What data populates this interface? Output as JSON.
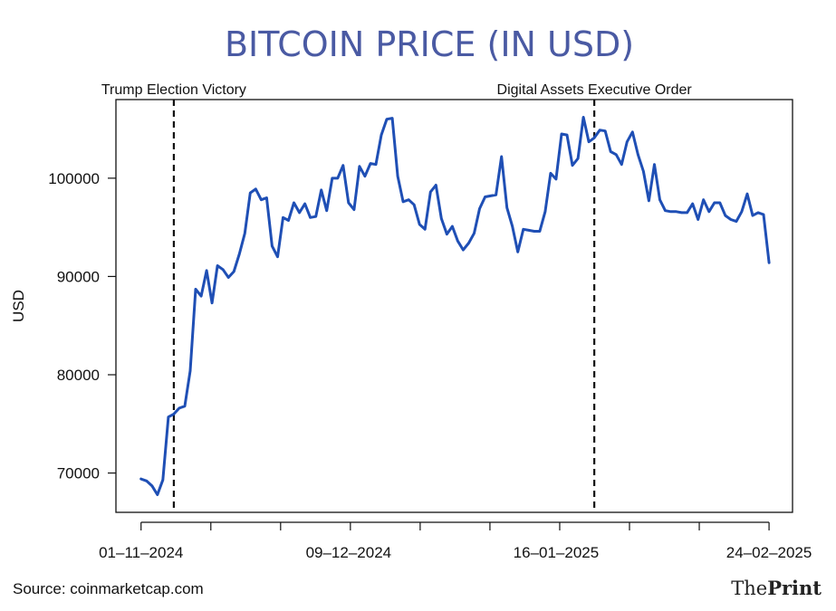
{
  "chart_data": {
    "type": "line",
    "title": "BITCOIN PRICE (IN USD)",
    "xlabel": "",
    "ylabel": "USD",
    "x_tick_labels": [
      "01–11–2024",
      "09–12–2024",
      "16–01–2025",
      "24–02–2025"
    ],
    "x_tick_index": [
      0,
      38,
      76,
      115
    ],
    "y_ticks": [
      70000,
      80000,
      90000,
      100000
    ],
    "y_tick_labels": [
      "70000",
      "80000",
      "90000",
      "100000"
    ],
    "ylim": [
      66000,
      108000
    ],
    "xlim_index": [
      -4.6,
      119.3
    ],
    "series": [
      {
        "name": "Bitcoin Price",
        "color": "#1f4fb5",
        "values": [
          69400,
          69200,
          68700,
          67800,
          69300,
          75700,
          76000,
          76600,
          76800,
          80400,
          88700,
          88000,
          90600,
          87300,
          91100,
          90700,
          89900,
          90500,
          92300,
          94400,
          98500,
          98900,
          97800,
          98000,
          93100,
          92000,
          96000,
          95700,
          97500,
          96500,
          97400,
          96000,
          96100,
          98800,
          96700,
          100000,
          100000,
          101300,
          97500,
          96800,
          101200,
          100200,
          101500,
          101400,
          104400,
          106000,
          106100,
          100200,
          97600,
          97800,
          97300,
          95300,
          94800,
          98600,
          99300,
          95900,
          94300,
          95100,
          93600,
          92700,
          93400,
          94400,
          96900,
          98100,
          98200,
          98300,
          102200,
          97000,
          95100,
          92500,
          94800,
          94700,
          94600,
          94600,
          96600,
          100500,
          99900,
          104500,
          104400,
          101300,
          102000,
          106200,
          103700,
          104100,
          104900,
          104800,
          102700,
          102400,
          101400,
          103700,
          104700,
          102400,
          100700,
          97700,
          101400,
          97800,
          96700,
          96600,
          96600,
          96500,
          96500,
          97400,
          95800,
          97800,
          96600,
          97500,
          97500,
          96200,
          95800,
          95600,
          96600,
          98400,
          96200,
          96500,
          96300,
          91400
        ]
      }
    ],
    "annotations": [
      {
        "label": "Trump Election Victory",
        "x_index": 6
      },
      {
        "label": "Digital Assets Executive Order",
        "x_index": 83
      }
    ],
    "grid": false
  },
  "footer": {
    "source": "Source: coinmarketcap.com",
    "brand_the": "The",
    "brand_print": "Print"
  }
}
